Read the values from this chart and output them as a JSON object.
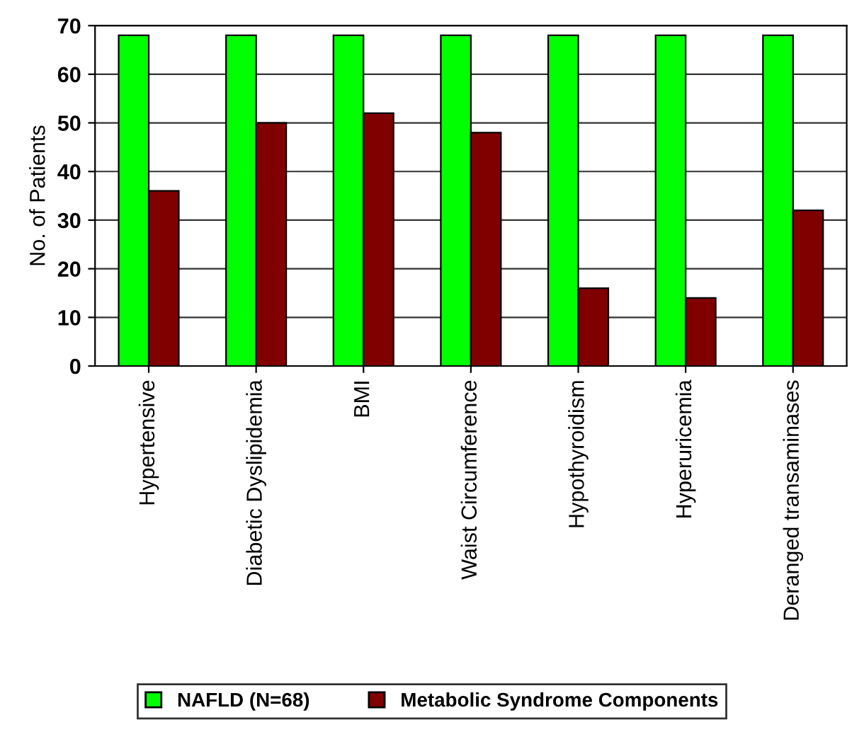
{
  "chart_data": {
    "type": "bar",
    "ylabel": "No. of Patients",
    "categories": [
      "Hypertensive",
      "Diabetic Dyslipidemia",
      "BMI",
      "Waist Circumference",
      "Hypothyroidism",
      "Hyperuricemia",
      "Deranged transaminases"
    ],
    "series": [
      {
        "name": "NAFLD (N=68)",
        "color": "#00ff00",
        "values": [
          68,
          68,
          68,
          68,
          68,
          68,
          68
        ]
      },
      {
        "name": "Metabolic Syndrome Components",
        "color": "#800000",
        "values": [
          36,
          50,
          52,
          48,
          16,
          14,
          32
        ]
      }
    ],
    "ylim": [
      0,
      70
    ],
    "yticks": [
      0,
      10,
      20,
      30,
      40,
      50,
      60,
      70
    ],
    "grid": "y",
    "legend": "bottom"
  }
}
